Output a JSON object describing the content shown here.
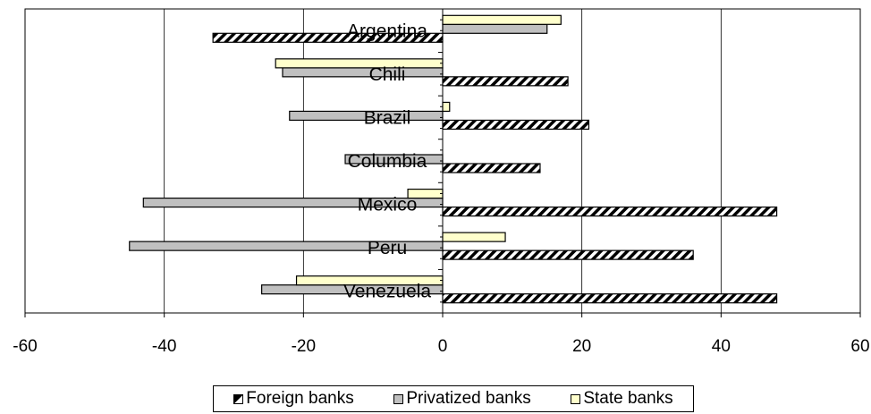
{
  "chart_data": {
    "type": "bar",
    "orientation": "horizontal",
    "categories": [
      "Argentina",
      "Chili",
      "Brazil",
      "Columbia",
      "Mexico",
      "Peru",
      "Venezuela"
    ],
    "series": [
      {
        "name": "Foreign banks",
        "values": [
          -33,
          18,
          21,
          14,
          48,
          36,
          48
        ],
        "color": "#000000",
        "pattern": "diagonal-hatch"
      },
      {
        "name": "Privatized banks",
        "values": [
          15,
          -23,
          -22,
          -14,
          -43,
          -45,
          -26
        ],
        "color": "#c0c0c0"
      },
      {
        "name": "State banks",
        "values": [
          17,
          -24,
          1,
          0,
          -5,
          9,
          -21
        ],
        "color": "#ffffcc"
      }
    ],
    "xlim": [
      -60,
      60
    ],
    "xticks": [
      "-60",
      "-40",
      "-20",
      "0",
      "20",
      "40",
      "60"
    ],
    "grid": "vertical",
    "legend_position": "bottom"
  }
}
